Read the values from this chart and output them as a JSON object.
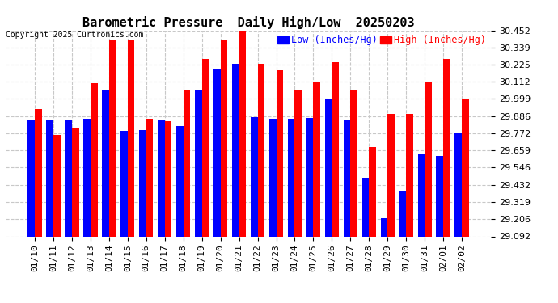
{
  "title": "Barometric Pressure  Daily High/Low  20250203",
  "copyright": "Copyright 2025 Curtronics.com",
  "legend_low": "Low (Inches/Hg)",
  "legend_high": "High (Inches/Hg)",
  "dates": [
    "01/10",
    "01/11",
    "01/12",
    "01/13",
    "01/14",
    "01/15",
    "01/16",
    "01/17",
    "01/18",
    "01/19",
    "01/20",
    "01/21",
    "01/22",
    "01/23",
    "01/24",
    "01/25",
    "01/26",
    "01/27",
    "01/28",
    "01/29",
    "01/30",
    "01/31",
    "02/01",
    "02/02"
  ],
  "high_values": [
    29.93,
    29.76,
    29.81,
    30.1,
    30.39,
    30.39,
    29.87,
    29.85,
    30.06,
    30.26,
    30.39,
    30.452,
    30.23,
    30.19,
    30.06,
    30.11,
    30.24,
    30.06,
    29.68,
    29.9,
    29.9,
    30.11,
    30.26,
    29.999
  ],
  "low_values": [
    29.86,
    29.86,
    29.855,
    29.87,
    30.06,
    29.79,
    29.795,
    29.855,
    29.82,
    30.06,
    30.2,
    30.23,
    29.88,
    29.87,
    29.87,
    29.875,
    29.999,
    29.855,
    29.48,
    29.21,
    29.39,
    29.64,
    29.62,
    29.775
  ],
  "ylim_min": 29.092,
  "ylim_max": 30.452,
  "yticks": [
    29.092,
    29.206,
    29.319,
    29.432,
    29.546,
    29.659,
    29.772,
    29.886,
    29.999,
    30.112,
    30.225,
    30.339,
    30.452
  ],
  "bar_width": 0.38,
  "high_color": "#ff0000",
  "low_color": "#0000ff",
  "bg_color": "#ffffff",
  "grid_color": "#c8c8c8",
  "title_fontsize": 11,
  "tick_fontsize": 8,
  "legend_fontsize": 8.5
}
